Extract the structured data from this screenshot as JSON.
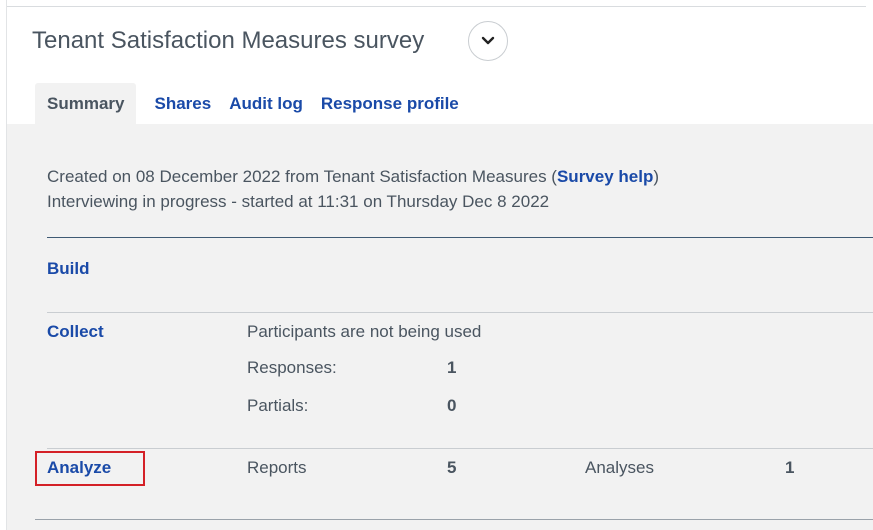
{
  "header": {
    "title": "Tenant Satisfaction Measures survey",
    "menu_icon": "chevron-down-icon"
  },
  "tabs": [
    {
      "label": "Summary",
      "active": true
    },
    {
      "label": "Shares",
      "active": false
    },
    {
      "label": "Audit log",
      "active": false
    },
    {
      "label": "Response profile",
      "active": false
    }
  ],
  "info": {
    "created_prefix": "Created on 08 December 2022 from Tenant Satisfaction Measures (",
    "survey_help": "Survey help",
    "created_suffix": ")",
    "status": "Interviewing in progress - started at 11:31 on Thursday Dec 8 2022"
  },
  "sections": {
    "build": {
      "label": "Build"
    },
    "collect": {
      "label": "Collect",
      "participants_text": "Participants are not being used",
      "responses_label": "Responses:",
      "responses_value": "1",
      "partials_label": "Partials:",
      "partials_value": "0"
    },
    "analyze": {
      "label": "Analyze",
      "reports_label": "Reports",
      "reports_value": "5",
      "analyses_label": "Analyses",
      "analyses_value": "1"
    }
  },
  "colors": {
    "link": "#1a4aa8",
    "text": "#4a5560",
    "panel_bg": "#f2f2f2",
    "highlight": "#d42027"
  }
}
